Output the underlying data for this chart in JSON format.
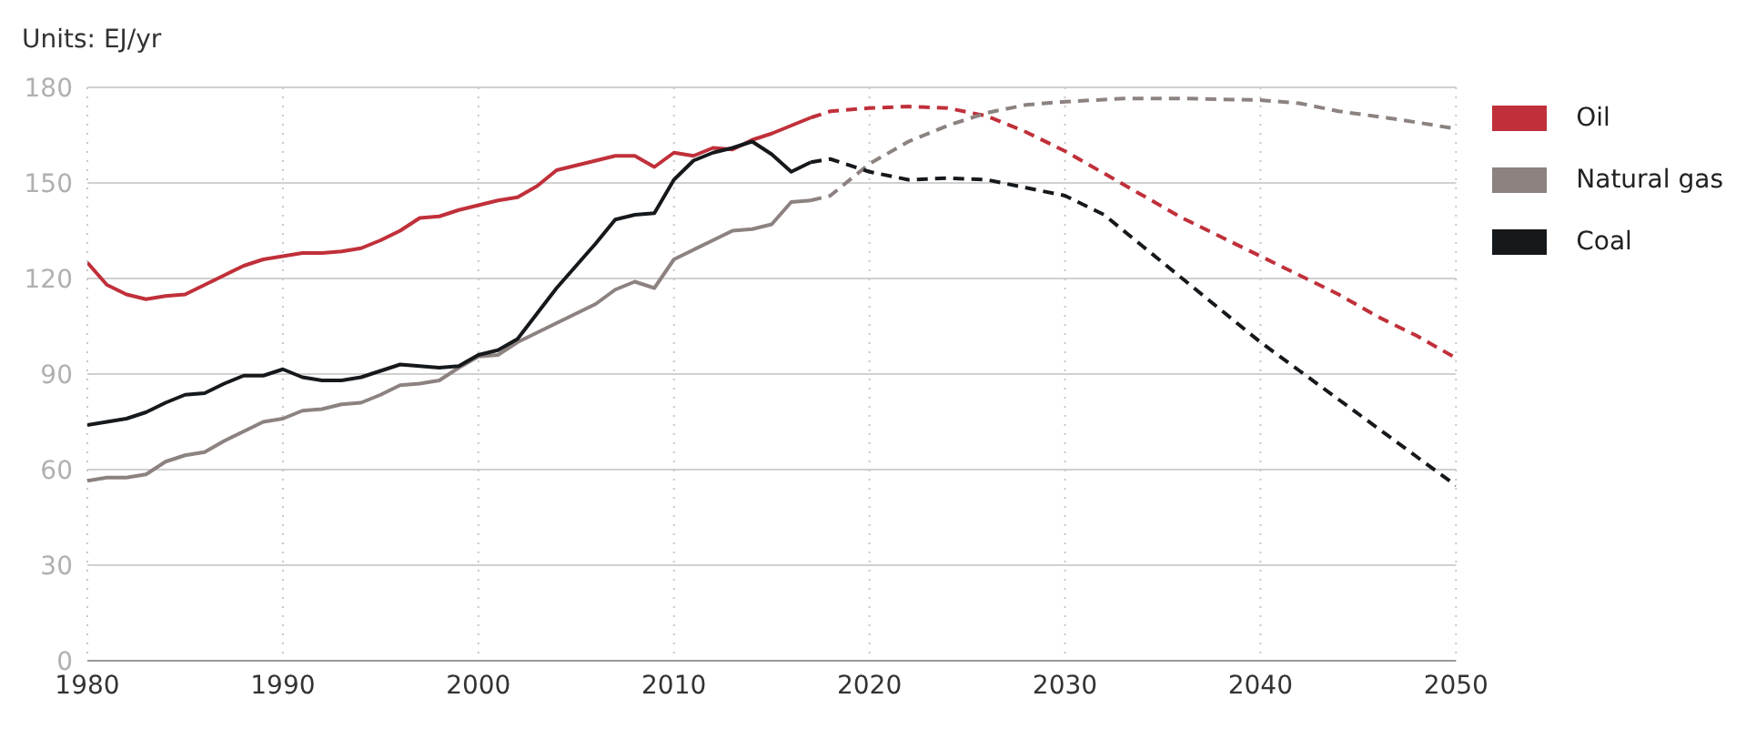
{
  "chart_data": {
    "type": "line",
    "ylabel": "Units: EJ/yr",
    "xlim": [
      1980,
      2050
    ],
    "xticks": [
      1980,
      1990,
      2000,
      2010,
      2020,
      2030,
      2040,
      2050
    ],
    "ylim": [
      0,
      180
    ],
    "yticks": [
      0,
      30,
      60,
      90,
      120,
      150,
      180
    ],
    "grid": true,
    "legend": "right",
    "marker": "none",
    "series": [
      {
        "name": "Oil",
        "color": "#c0303a",
        "line_style": "solid",
        "x": [
          1980,
          1981,
          1982,
          1983,
          1984,
          1985,
          1986,
          1987,
          1988,
          1989,
          1990,
          1991,
          1992,
          1993,
          1994,
          1995,
          1996,
          1997,
          1998,
          1999,
          2000,
          2001,
          2002,
          2003,
          2004,
          2005,
          2006,
          2007,
          2008,
          2009,
          2010,
          2011,
          2012,
          2013,
          2014,
          2015,
          2016,
          2017
        ],
        "values": [
          125,
          118,
          115,
          113.5,
          114.5,
          115,
          118,
          121,
          124,
          126,
          127,
          128,
          128,
          128.5,
          129.5,
          132,
          135,
          139,
          139.5,
          141.5,
          143,
          144.5,
          145.5,
          149,
          154,
          155.5,
          157,
          158.5,
          158.5,
          155,
          159.5,
          158.5,
          161,
          160.5,
          163.5,
          165.5,
          168,
          170.5
        ]
      },
      {
        "name": "Natural gas",
        "color": "#8c8280",
        "line_style": "solid",
        "x": [
          1980,
          1981,
          1982,
          1983,
          1984,
          1985,
          1986,
          1987,
          1988,
          1989,
          1990,
          1991,
          1992,
          1993,
          1994,
          1995,
          1996,
          1997,
          1998,
          1999,
          2000,
          2001,
          2002,
          2003,
          2004,
          2005,
          2006,
          2007,
          2008,
          2009,
          2010,
          2011,
          2012,
          2013,
          2014,
          2015,
          2016,
          2017
        ],
        "values": [
          56.5,
          57.5,
          57.5,
          58.5,
          62.5,
          64.5,
          65.5,
          69,
          72,
          75,
          76,
          78.5,
          79,
          80.5,
          81,
          83.5,
          86.5,
          87,
          88,
          92,
          95.5,
          96,
          100,
          103,
          106,
          109,
          112,
          116.5,
          119,
          117,
          126,
          129,
          132,
          135,
          135.5,
          137,
          144,
          144.5
        ]
      },
      {
        "name": "Coal",
        "color": "#16191c",
        "line_style": "solid",
        "x": [
          1980,
          1981,
          1982,
          1983,
          1984,
          1985,
          1986,
          1987,
          1988,
          1989,
          1990,
          1991,
          1992,
          1993,
          1994,
          1995,
          1996,
          1997,
          1998,
          1999,
          2000,
          2001,
          2002,
          2003,
          2004,
          2005,
          2006,
          2007,
          2008,
          2009,
          2010,
          2011,
          2012,
          2013,
          2014,
          2015,
          2016,
          2017
        ],
        "values": [
          74,
          75,
          76,
          78,
          81,
          83.5,
          84,
          87,
          89.5,
          89.5,
          91.5,
          89,
          88,
          88,
          89,
          91,
          93,
          92.5,
          92,
          92.5,
          96,
          97.5,
          101,
          109,
          117,
          124,
          131,
          138.5,
          140,
          140.5,
          151,
          157,
          159.5,
          161,
          163,
          159,
          153.5,
          156.5
        ]
      },
      {
        "color": "#c0303a",
        "line_style": "dashed",
        "x": [
          2017,
          2018,
          2020,
          2022,
          2024,
          2026,
          2028,
          2030,
          2032,
          2034,
          2036,
          2038,
          2040,
          2042,
          2044,
          2046,
          2048,
          2050
        ],
        "values": [
          170.5,
          172.5,
          173.5,
          174,
          173.5,
          171,
          166,
          160,
          153,
          146,
          139,
          133,
          127,
          121,
          115,
          108,
          102,
          95
        ]
      },
      {
        "color": "#8c8280",
        "line_style": "dashed",
        "x": [
          2017,
          2018,
          2020,
          2022,
          2024,
          2026,
          2028,
          2030,
          2033,
          2036,
          2040,
          2042,
          2044,
          2047,
          2050
        ],
        "values": [
          144.5,
          146,
          156,
          163,
          168,
          172,
          174.5,
          175.5,
          176.5,
          176.5,
          176,
          175,
          172.5,
          170,
          167
        ]
      },
      {
        "color": "#16191c",
        "line_style": "dashed",
        "x": [
          2017,
          2018,
          2020,
          2022,
          2024,
          2026,
          2028,
          2030,
          2032,
          2034,
          2036,
          2038,
          2040,
          2042,
          2044,
          2046,
          2048,
          2050
        ],
        "values": [
          156.5,
          157.5,
          153.5,
          151,
          151.5,
          151,
          148.5,
          146,
          140,
          130,
          120,
          110,
          100,
          91,
          82,
          73,
          64,
          55
        ]
      }
    ]
  }
}
